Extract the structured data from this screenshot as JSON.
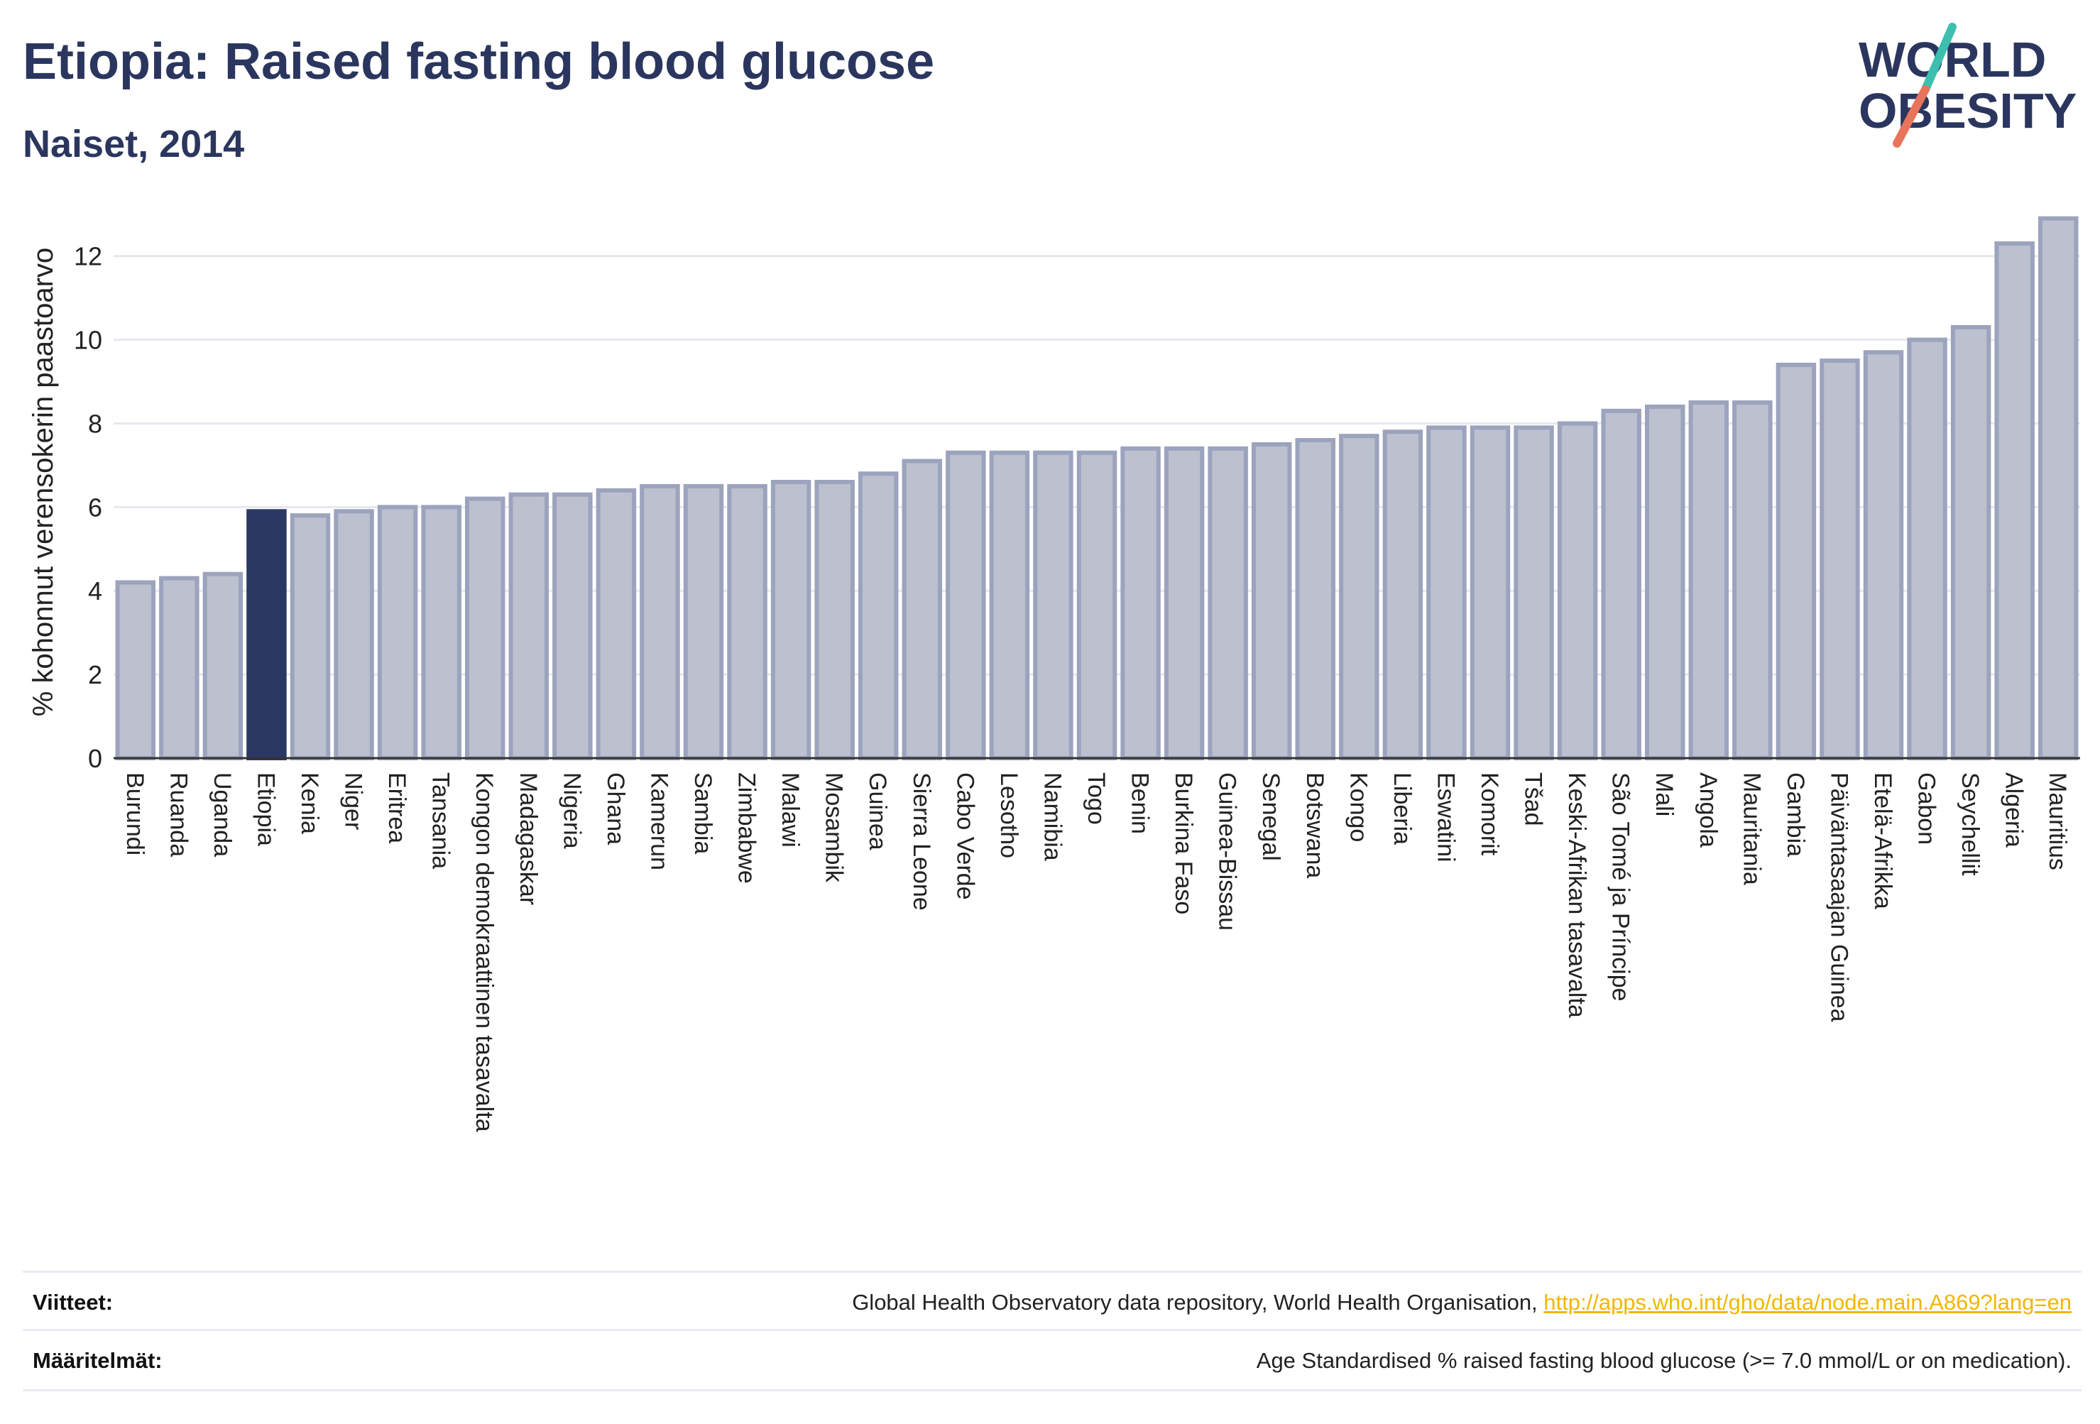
{
  "header": {
    "title": "Etiopia: Raised fasting blood glucose",
    "subtitle": "Naiset, 2014"
  },
  "logo": {
    "line1": "WORLD",
    "line2": "OBESITY"
  },
  "colors": {
    "highlight": "#2b3763",
    "bar_fill": "#bcc0cf",
    "bar_stroke": "#9ca3bd",
    "grid": "#e6e8ee",
    "text": "#2b365f",
    "logo_teal": "#3cbfae",
    "logo_coral": "#e8745c",
    "link": "#f2b705"
  },
  "chart_data": {
    "type": "bar",
    "ylabel": "% kohonnut verensokerin paastoarvo",
    "ylim": [
      0,
      13.2
    ],
    "yticks": [
      0,
      2,
      4,
      6,
      8,
      10,
      12
    ],
    "grid": true,
    "highlight": "Etiopia",
    "categories": [
      "Burundi",
      "Ruanda",
      "Uganda",
      "Etiopia",
      "Kenia",
      "Niger",
      "Eritrea",
      "Tansania",
      "Kongon demokraattinen tasavalta",
      "Madagaskar",
      "Nigeria",
      "Ghana",
      "Kamerun",
      "Sambia",
      "Zimbabwe",
      "Malawi",
      "Mosambik",
      "Guinea",
      "Sierra Leone",
      "Cabo Verde",
      "Lesotho",
      "Namibia",
      "Togo",
      "Benin",
      "Burkina Faso",
      "Guinea-Bissau",
      "Senegal",
      "Botswana",
      "Kongo",
      "Liberia",
      "Eswatini",
      "Komorit",
      "Tšad",
      "Keski-Afrikan tasavalta",
      "São Tomé ja Príncipe",
      "Mali",
      "Angola",
      "Mauritania",
      "Gambia",
      "Päiväntasaajan Guinea",
      "Etelä-Afrikka",
      "Gabon",
      "Seychellit",
      "Algeria",
      "Mauritius"
    ],
    "values": [
      4.2,
      4.3,
      4.4,
      5.9,
      5.8,
      5.9,
      6.0,
      6.0,
      6.2,
      6.3,
      6.3,
      6.4,
      6.5,
      6.5,
      6.5,
      6.6,
      6.6,
      6.8,
      7.1,
      7.3,
      7.3,
      7.3,
      7.3,
      7.4,
      7.4,
      7.4,
      7.5,
      7.6,
      7.7,
      7.8,
      7.9,
      7.9,
      7.9,
      8.0,
      8.3,
      8.4,
      8.5,
      8.5,
      9.4,
      9.5,
      9.7,
      10.0,
      10.3,
      12.3,
      12.9
    ]
  },
  "footer": {
    "sources_label": "Viitteet:",
    "sources_text": "Global Health Observatory data repository, World Health Organisation, ",
    "sources_link": "http://apps.who.int/gho/data/node.main.A869?lang=en",
    "definitions_label": "Määritelmät:",
    "definitions_text": "Age Standardised % raised fasting blood glucose (>= 7.0 mmol/L or on medication)."
  }
}
